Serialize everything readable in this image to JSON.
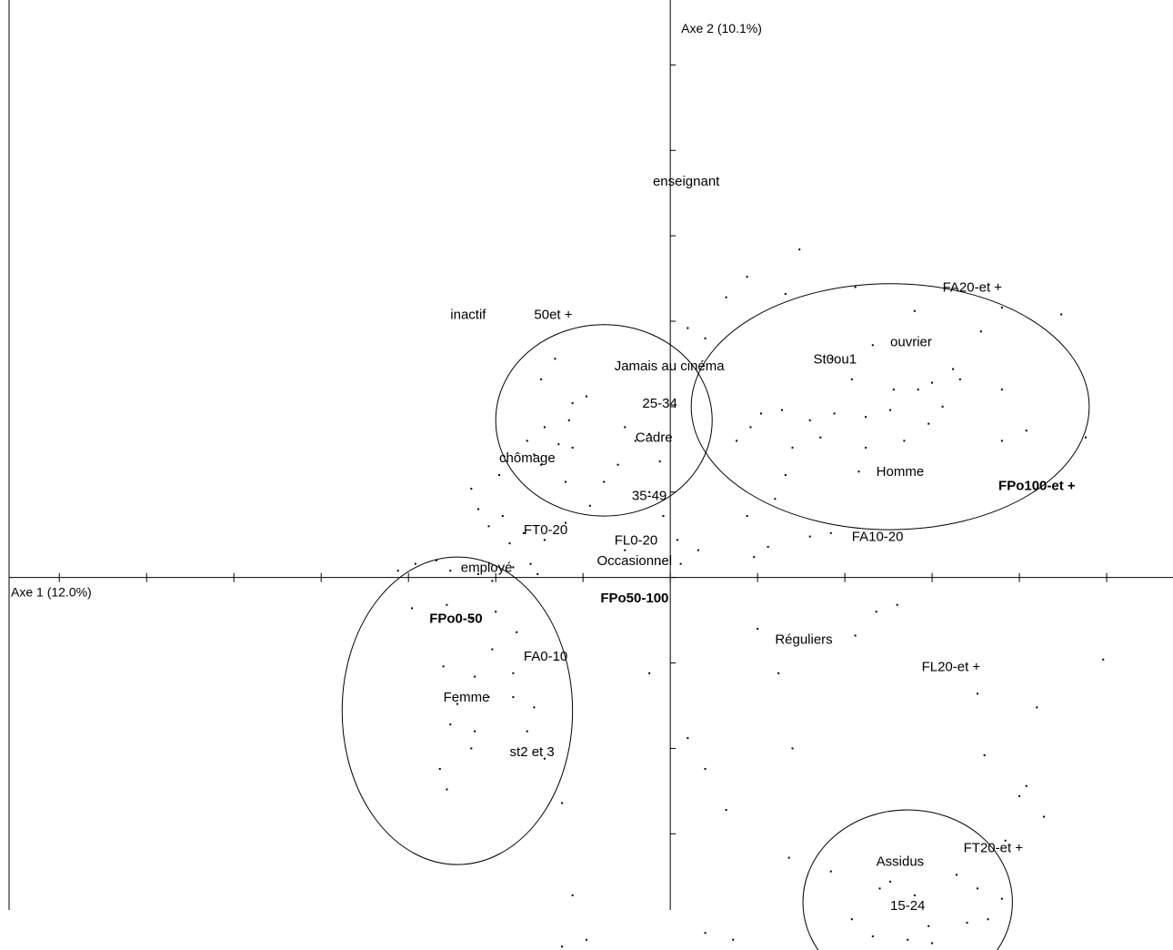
{
  "chart_data": {
    "type": "scatter",
    "title": "",
    "xlabel": "Axe 1 (12.0%)",
    "ylabel": "Axe 2 (10.1%)",
    "xlim": [
      -1.92,
      1.44
    ],
    "ylim": [
      -1.09,
      1.69
    ],
    "grid": false,
    "legend": "none",
    "labels": [
      {
        "text": "enseignant",
        "x": -0.05,
        "y": 1.16,
        "bold": false
      },
      {
        "text": "inactif",
        "x": -0.63,
        "y": 0.77,
        "bold": false
      },
      {
        "text": "50et +",
        "x": -0.39,
        "y": 0.77,
        "bold": false
      },
      {
        "text": "FA20-et +",
        "x": 0.78,
        "y": 0.85,
        "bold": false
      },
      {
        "text": "ouvrier",
        "x": 0.63,
        "y": 0.69,
        "bold": false
      },
      {
        "text": "St0ou1",
        "x": 0.41,
        "y": 0.64,
        "bold": false
      },
      {
        "text": "Jamais au cinéma",
        "x": -0.16,
        "y": 0.62,
        "bold": false
      },
      {
        "text": "25-34",
        "x": -0.08,
        "y": 0.51,
        "bold": false
      },
      {
        "text": "Cadre",
        "x": -0.1,
        "y": 0.41,
        "bold": false
      },
      {
        "text": "chômage",
        "x": -0.49,
        "y": 0.35,
        "bold": false
      },
      {
        "text": "Homme",
        "x": 0.59,
        "y": 0.31,
        "bold": false
      },
      {
        "text": "FPo100-et +",
        "x": 0.94,
        "y": 0.27,
        "bold": true
      },
      {
        "text": "35-49",
        "x": -0.11,
        "y": 0.24,
        "bold": false
      },
      {
        "text": "FT0-20",
        "x": -0.42,
        "y": 0.14,
        "bold": false
      },
      {
        "text": "FL0-20",
        "x": -0.16,
        "y": 0.11,
        "bold": false
      },
      {
        "text": "FA10-20",
        "x": 0.52,
        "y": 0.12,
        "bold": false
      },
      {
        "text": "Occasionnel",
        "x": -0.21,
        "y": 0.05,
        "bold": false
      },
      {
        "text": "employé",
        "x": -0.6,
        "y": 0.03,
        "bold": false
      },
      {
        "text": "FPo50-100",
        "x": -0.2,
        "y": -0.06,
        "bold": true
      },
      {
        "text": "FPo0-50",
        "x": -0.69,
        "y": -0.12,
        "bold": true
      },
      {
        "text": "Réguliers",
        "x": 0.3,
        "y": -0.18,
        "bold": false
      },
      {
        "text": "FA0-10",
        "x": -0.42,
        "y": -0.23,
        "bold": false
      },
      {
        "text": "FL20-et +",
        "x": 0.72,
        "y": -0.26,
        "bold": false
      },
      {
        "text": "Femme",
        "x": -0.65,
        "y": -0.35,
        "bold": false
      },
      {
        "text": "st2 et 3",
        "x": -0.46,
        "y": -0.51,
        "bold": false
      },
      {
        "text": "FT20-et +",
        "x": 0.84,
        "y": -0.79,
        "bold": false
      },
      {
        "text": "Assidus",
        "x": 0.59,
        "y": -0.83,
        "bold": false
      },
      {
        "text": "15-24",
        "x": 0.63,
        "y": -0.96,
        "bold": false
      }
    ],
    "ellipses": [
      {
        "name": "cluster-center",
        "cx": -0.19,
        "cy": 0.46,
        "rx": 0.31,
        "ry": 0.28
      },
      {
        "name": "cluster-right",
        "cx": 0.63,
        "cy": 0.5,
        "rx": 0.57,
        "ry": 0.36
      },
      {
        "name": "cluster-lower-left",
        "cx": -0.61,
        "cy": -0.39,
        "rx": 0.33,
        "ry": 0.45
      },
      {
        "name": "cluster-lower-right",
        "cx": 0.68,
        "cy": -0.95,
        "rx": 0.3,
        "ry": 0.27
      }
    ],
    "points": [
      [
        0.37,
        0.96
      ],
      [
        0.16,
        0.82
      ],
      [
        0.33,
        0.83
      ],
      [
        0.22,
        0.88
      ],
      [
        0.53,
        0.85
      ],
      [
        0.7,
        0.78
      ],
      [
        0.95,
        0.79
      ],
      [
        1.12,
        0.77
      ],
      [
        0.1,
        0.7
      ],
      [
        0.05,
        0.73
      ],
      [
        0.46,
        0.64
      ],
      [
        0.58,
        0.68
      ],
      [
        0.89,
        0.72
      ],
      [
        0.81,
        0.61
      ],
      [
        0.52,
        0.58
      ],
      [
        0.64,
        0.55
      ],
      [
        0.71,
        0.55
      ],
      [
        0.75,
        0.57
      ],
      [
        0.83,
        0.58
      ],
      [
        0.95,
        0.55
      ],
      [
        0.26,
        0.48
      ],
      [
        0.32,
        0.49
      ],
      [
        0.4,
        0.46
      ],
      [
        0.47,
        0.48
      ],
      [
        0.56,
        0.47
      ],
      [
        0.63,
        0.49
      ],
      [
        0.78,
        0.5
      ],
      [
        0.74,
        0.45
      ],
      [
        0.56,
        0.38
      ],
      [
        0.67,
        0.4
      ],
      [
        0.43,
        0.41
      ],
      [
        0.23,
        0.44
      ],
      [
        0.95,
        0.4
      ],
      [
        1.02,
        0.43
      ],
      [
        1.19,
        0.41
      ],
      [
        0.35,
        0.38
      ],
      [
        0.19,
        0.4
      ],
      [
        0.33,
        0.3
      ],
      [
        0.3,
        0.23
      ],
      [
        0.54,
        0.31
      ],
      [
        0.22,
        0.18
      ],
      [
        0.46,
        0.13
      ],
      [
        0.4,
        0.12
      ],
      [
        0.28,
        0.09
      ],
      [
        0.24,
        0.06
      ],
      [
        0.08,
        0.08
      ],
      [
        0.03,
        0.04
      ],
      [
        -0.33,
        0.64
      ],
      [
        -0.37,
        0.58
      ],
      [
        -0.24,
        0.53
      ],
      [
        -0.28,
        0.51
      ],
      [
        -0.29,
        0.46
      ],
      [
        -0.36,
        0.44
      ],
      [
        -0.41,
        0.4
      ],
      [
        -0.39,
        0.36
      ],
      [
        -0.32,
        0.39
      ],
      [
        -0.28,
        0.38
      ],
      [
        -0.13,
        0.44
      ],
      [
        -0.1,
        0.4
      ],
      [
        -0.06,
        0.42
      ],
      [
        -0.03,
        0.34
      ],
      [
        -0.15,
        0.33
      ],
      [
        -0.19,
        0.28
      ],
      [
        -0.3,
        0.28
      ],
      [
        -0.37,
        0.33
      ],
      [
        -0.49,
        0.3
      ],
      [
        -0.57,
        0.26
      ],
      [
        -0.55,
        0.2
      ],
      [
        -0.48,
        0.18
      ],
      [
        -0.52,
        0.15
      ],
      [
        -0.42,
        0.13
      ],
      [
        -0.46,
        0.1
      ],
      [
        -0.36,
        0.11
      ],
      [
        -0.3,
        0.16
      ],
      [
        -0.23,
        0.21
      ],
      [
        -0.06,
        0.25
      ],
      [
        -0.02,
        0.18
      ],
      [
        0.02,
        0.11
      ],
      [
        -0.13,
        0.08
      ],
      [
        -0.03,
        0.04
      ],
      [
        -0.67,
        0.05
      ],
      [
        -0.73,
        0.04
      ],
      [
        -0.63,
        0.02
      ],
      [
        -0.55,
        0.01
      ],
      [
        -0.45,
        0.03
      ],
      [
        -0.4,
        0.04
      ],
      [
        -0.38,
        0.01
      ],
      [
        -0.51,
        -0.01
      ],
      [
        -0.78,
        0.02
      ],
      [
        -0.74,
        -0.09
      ],
      [
        -0.64,
        -0.08
      ],
      [
        -0.57,
        -0.12
      ],
      [
        -0.5,
        -0.1
      ],
      [
        -0.44,
        -0.16
      ],
      [
        -0.51,
        -0.21
      ],
      [
        -0.45,
        -0.28
      ],
      [
        -0.56,
        -0.29
      ],
      [
        -0.65,
        -0.26
      ],
      [
        -0.61,
        -0.37
      ],
      [
        -0.52,
        -0.35
      ],
      [
        -0.45,
        -0.35
      ],
      [
        -0.56,
        -0.45
      ],
      [
        -0.63,
        -0.43
      ],
      [
        -0.57,
        -0.5
      ],
      [
        -0.66,
        -0.56
      ],
      [
        -0.64,
        -0.62
      ],
      [
        -0.39,
        -0.38
      ],
      [
        -0.41,
        -0.45
      ],
      [
        -0.36,
        -0.53
      ],
      [
        -0.31,
        -0.66
      ],
      [
        -0.28,
        -0.93
      ],
      [
        -0.24,
        -1.06
      ],
      [
        -0.31,
        -1.08
      ],
      [
        -0.06,
        -0.28
      ],
      [
        -0.03,
        -0.06
      ],
      [
        0.25,
        -0.15
      ],
      [
        0.31,
        -0.28
      ],
      [
        0.53,
        -0.17
      ],
      [
        0.59,
        -0.1
      ],
      [
        0.65,
        -0.08
      ],
      [
        0.88,
        -0.34
      ],
      [
        1.05,
        -0.38
      ],
      [
        1.24,
        -0.24
      ],
      [
        0.35,
        -0.5
      ],
      [
        0.05,
        -0.47
      ],
      [
        0.1,
        -0.56
      ],
      [
        0.16,
        -0.68
      ],
      [
        0.9,
        -0.52
      ],
      [
        1.02,
        -0.61
      ],
      [
        1.0,
        -0.64
      ],
      [
        1.07,
        -0.7
      ],
      [
        0.96,
        -0.77
      ],
      [
        0.34,
        -0.82
      ],
      [
        0.46,
        -0.86
      ],
      [
        0.63,
        -0.89
      ],
      [
        0.7,
        -0.93
      ],
      [
        0.82,
        -0.87
      ],
      [
        0.88,
        -0.91
      ],
      [
        0.95,
        -0.94
      ],
      [
        0.91,
        -1.0
      ],
      [
        0.74,
        -1.02
      ],
      [
        0.58,
        -1.05
      ],
      [
        0.68,
        -1.06
      ],
      [
        0.75,
        -1.07
      ],
      [
        0.85,
        -1.01
      ],
      [
        0.52,
        -1.0
      ],
      [
        0.6,
        -0.91
      ],
      [
        0.1,
        -1.04
      ],
      [
        0.18,
        -1.06
      ]
    ]
  }
}
